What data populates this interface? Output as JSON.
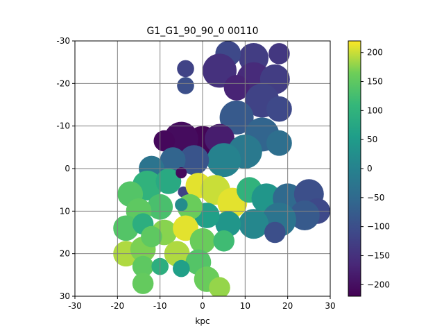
{
  "chart_data": {
    "type": "heatmap",
    "title": "G1_G1_90_90_0   00110",
    "xlabel": "kpc",
    "ylabel": "",
    "xlim": [
      -30,
      30
    ],
    "ylim": [
      -30,
      30
    ],
    "y_inverted": true,
    "x_ticks": [
      "-30",
      "-20",
      "-10",
      "0",
      "10",
      "20",
      "30"
    ],
    "y_ticks": [
      "-30",
      "-20",
      "-10",
      "0",
      "10",
      "20",
      "30"
    ],
    "grid": true,
    "colormap": "viridis",
    "colorbar": {
      "range": [
        -220,
        220
      ],
      "ticks": [
        "200",
        "150",
        "100",
        "50",
        "0",
        "−50",
        "−100",
        "−150",
        "−200"
      ],
      "tick_values": [
        200,
        150,
        100,
        50,
        0,
        -50,
        -100,
        -150,
        -200
      ]
    },
    "blobs": [
      {
        "x": 12,
        "y": -26,
        "r": 3.5,
        "v": -130
      },
      {
        "x": 18,
        "y": -27,
        "r": 2.5,
        "v": -140
      },
      {
        "x": 6,
        "y": -27,
        "r": 3,
        "v": -110
      },
      {
        "x": 4,
        "y": -23,
        "r": 4,
        "v": -150
      },
      {
        "x": 12,
        "y": -21,
        "r": 4,
        "v": -160
      },
      {
        "x": 17,
        "y": -21,
        "r": 3.5,
        "v": -130
      },
      {
        "x": 8,
        "y": -19,
        "r": 3,
        "v": -170
      },
      {
        "x": 14,
        "y": -16,
        "r": 4,
        "v": -120
      },
      {
        "x": 18,
        "y": -14,
        "r": 3,
        "v": -110
      },
      {
        "x": 8,
        "y": -12,
        "r": 4,
        "v": -80
      },
      {
        "x": 14,
        "y": -8,
        "r": 4,
        "v": -60
      },
      {
        "x": 18,
        "y": -6,
        "r": 3,
        "v": -40
      },
      {
        "x": -4,
        "y": -23.5,
        "r": 2,
        "v": -120
      },
      {
        "x": -4,
        "y": -19.5,
        "r": 2,
        "v": -100
      },
      {
        "x": 0,
        "y": -6,
        "r": 4,
        "v": -215
      },
      {
        "x": -5,
        "y": -7,
        "r": 4,
        "v": -205
      },
      {
        "x": 4,
        "y": -7,
        "r": 3.5,
        "v": -180
      },
      {
        "x": -9,
        "y": -6.5,
        "r": 2.5,
        "v": -210
      },
      {
        "x": 10,
        "y": -4,
        "r": 4,
        "v": -20
      },
      {
        "x": 5,
        "y": -2,
        "r": 4,
        "v": 0
      },
      {
        "x": -2,
        "y": -2,
        "r": 3.5,
        "v": -90
      },
      {
        "x": -7,
        "y": -2,
        "r": 3,
        "v": -60
      },
      {
        "x": -12,
        "y": 0,
        "r": 3,
        "v": -30
      },
      {
        "x": -13,
        "y": 4,
        "r": 3.5,
        "v": 100
      },
      {
        "x": -17,
        "y": 6,
        "r": 3,
        "v": 140
      },
      {
        "x": -8,
        "y": 3,
        "r": 3,
        "v": 80
      },
      {
        "x": -5,
        "y": 1,
        "r": 1.3,
        "v": -210
      },
      {
        "x": -4.5,
        "y": 5.5,
        "r": 1.3,
        "v": -120
      },
      {
        "x": -1,
        "y": 4,
        "r": 3,
        "v": 210
      },
      {
        "x": 3,
        "y": 5,
        "r": 3.5,
        "v": 200
      },
      {
        "x": 7,
        "y": 8,
        "r": 3.5,
        "v": 210
      },
      {
        "x": 11,
        "y": 5,
        "r": 3,
        "v": 100
      },
      {
        "x": 15,
        "y": 7,
        "r": 3.5,
        "v": 40
      },
      {
        "x": 20,
        "y": 7,
        "r": 3.5,
        "v": -50
      },
      {
        "x": 25,
        "y": 6,
        "r": 3.5,
        "v": -100
      },
      {
        "x": 27,
        "y": 10,
        "r": 3,
        "v": -110
      },
      {
        "x": 24,
        "y": 11,
        "r": 3.5,
        "v": -80
      },
      {
        "x": 18,
        "y": 12,
        "r": 4,
        "v": -30
      },
      {
        "x": 12,
        "y": 13,
        "r": 3.5,
        "v": 10
      },
      {
        "x": 6,
        "y": 13,
        "r": 3,
        "v": 40
      },
      {
        "x": 1,
        "y": 11,
        "r": 3,
        "v": 60
      },
      {
        "x": 17,
        "y": 15,
        "r": 2.5,
        "v": -100
      },
      {
        "x": -3,
        "y": 9,
        "r": 3,
        "v": 160
      },
      {
        "x": -5,
        "y": 8.5,
        "r": 1.5,
        "v": 20
      },
      {
        "x": -10,
        "y": 9,
        "r": 3,
        "v": 130
      },
      {
        "x": -15,
        "y": 10,
        "r": 3,
        "v": 150
      },
      {
        "x": -18,
        "y": 14,
        "r": 3,
        "v": 140
      },
      {
        "x": -14,
        "y": 13,
        "r": 2.5,
        "v": 90
      },
      {
        "x": -9,
        "y": 15,
        "r": 3,
        "v": 175
      },
      {
        "x": -4,
        "y": 14,
        "r": 3,
        "v": 210
      },
      {
        "x": 0,
        "y": 17,
        "r": 3,
        "v": 160
      },
      {
        "x": -6,
        "y": 20,
        "r": 3,
        "v": 190
      },
      {
        "x": -1,
        "y": 22,
        "r": 3,
        "v": 140
      },
      {
        "x": -18,
        "y": 20,
        "r": 3,
        "v": 190
      },
      {
        "x": -14,
        "y": 19,
        "r": 3,
        "v": 170
      },
      {
        "x": -14,
        "y": 23,
        "r": 2.5,
        "v": 150
      },
      {
        "x": -10,
        "y": 23,
        "r": 2,
        "v": 90
      },
      {
        "x": -5,
        "y": 23.5,
        "r": 2,
        "v": 60
      },
      {
        "x": -14,
        "y": 27,
        "r": 2.5,
        "v": 155
      },
      {
        "x": 1,
        "y": 26,
        "r": 3,
        "v": 160
      },
      {
        "x": 4,
        "y": 28,
        "r": 2.5,
        "v": 180
      },
      {
        "x": -12,
        "y": 16,
        "r": 2.5,
        "v": 150
      },
      {
        "x": 5,
        "y": 17,
        "r": 2.5,
        "v": 120
      }
    ]
  }
}
